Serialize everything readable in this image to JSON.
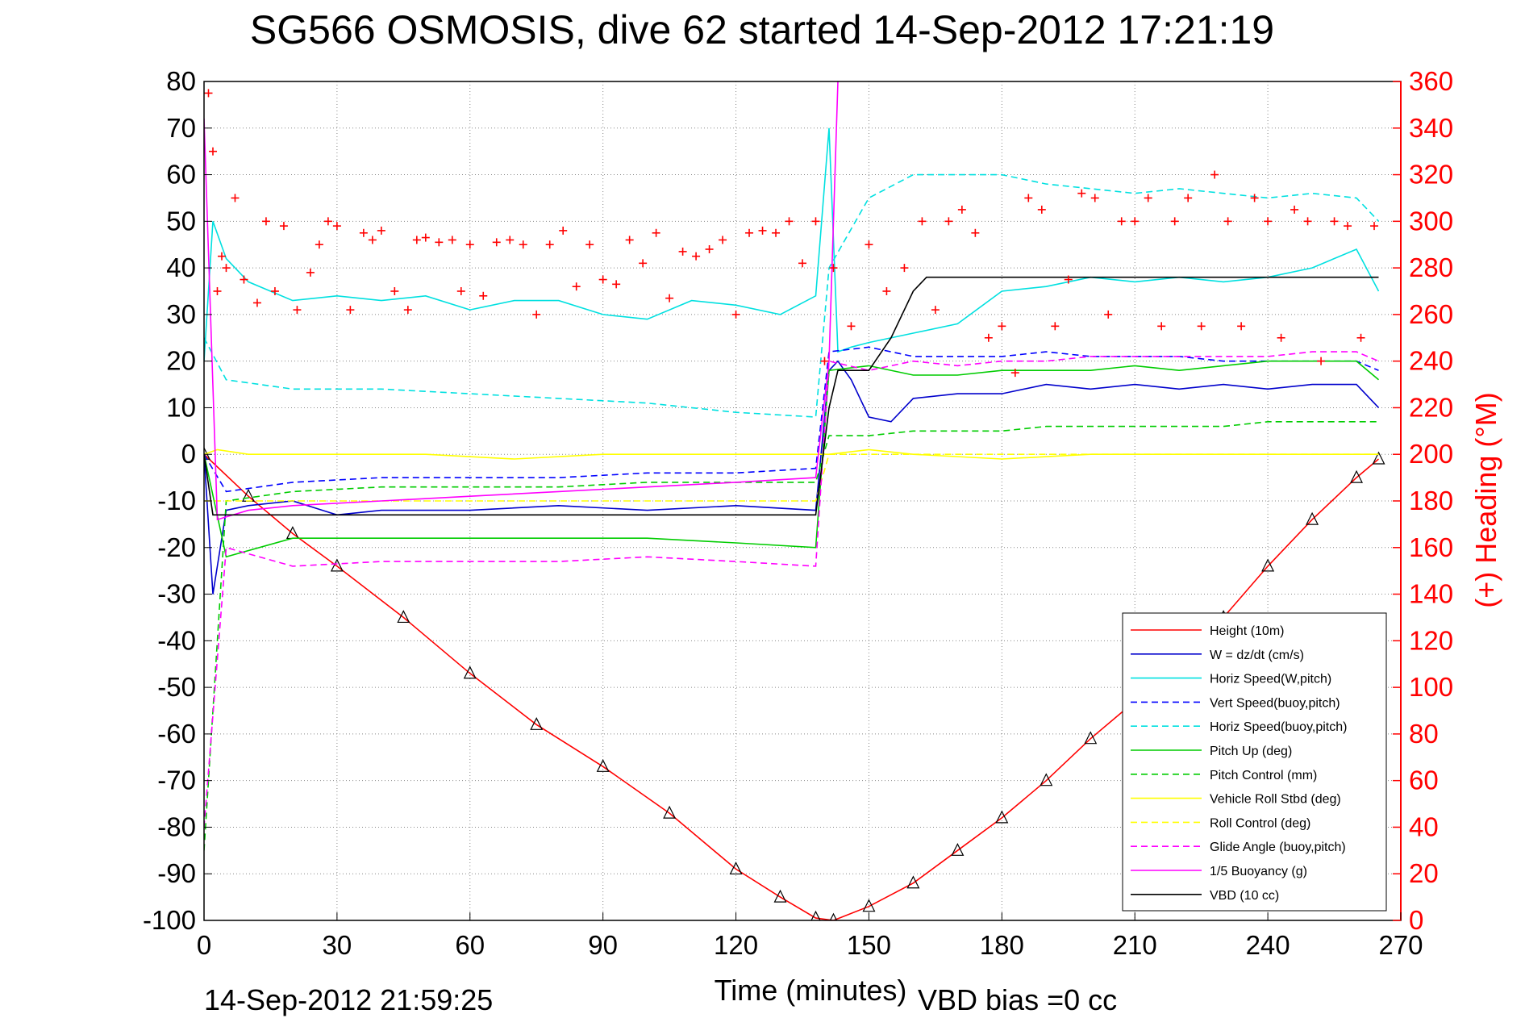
{
  "chart_data": {
    "type": "line",
    "title": "SG566 OSMOSIS, dive 62 started 14-Sep-2012 17:21:19",
    "xlabel": "Time (minutes)",
    "ylabel": "",
    "y2label": "(+) Heading (°M)",
    "xlim": [
      0,
      270
    ],
    "ylim": [
      -100,
      80
    ],
    "y2lim": [
      0,
      360
    ],
    "xticks": [
      "0",
      "30",
      "60",
      "90",
      "120",
      "150",
      "180",
      "210",
      "240",
      "270"
    ],
    "yticks": [
      "80",
      "70",
      "60",
      "50",
      "40",
      "30",
      "20",
      "10",
      "0",
      "-10",
      "-20",
      "-30",
      "-40",
      "-50",
      "-60",
      "-70",
      "-80",
      "-90",
      "-100"
    ],
    "y2ticks": [
      "360",
      "340",
      "320",
      "300",
      "280",
      "260",
      "240",
      "220",
      "200",
      "180",
      "160",
      "140",
      "120",
      "100",
      "80",
      "60",
      "40",
      "20",
      "0"
    ],
    "grid": true,
    "legend_position": "lower-right",
    "footer_left": "14-Sep-2012 21:59:25",
    "footer_right": "VBD bias =0 cc",
    "series": [
      {
        "name": "Height (10m)",
        "color": "#ff0000",
        "style": "solid",
        "x": [
          0,
          10,
          20,
          30,
          45,
          60,
          75,
          90,
          105,
          120,
          130,
          138,
          142,
          150,
          160,
          170,
          180,
          190,
          200,
          210,
          220,
          230,
          240,
          250,
          260,
          265
        ],
        "y": [
          0,
          -9,
          -17,
          -24,
          -35,
          -47,
          -58,
          -67,
          -77,
          -89,
          -95,
          -99.5,
          -100,
          -97,
          -92,
          -85,
          -78,
          -70,
          -61,
          -53,
          -44,
          -35,
          -24,
          -14,
          -5,
          -1
        ]
      },
      {
        "name": "W = dz/dt (cm/s)",
        "color": "#0000cc",
        "style": "solid",
        "x": [
          0,
          2,
          5,
          10,
          20,
          30,
          40,
          60,
          80,
          100,
          120,
          138,
          141,
          143,
          146,
          150,
          155,
          160,
          170,
          180,
          190,
          200,
          210,
          220,
          230,
          240,
          250,
          260,
          265
        ],
        "y": [
          0,
          -30,
          -12,
          -11,
          -10,
          -13,
          -12,
          -12,
          -11,
          -12,
          -11,
          -12,
          18,
          20,
          16,
          8,
          7,
          12,
          13,
          13,
          15,
          14,
          15,
          14,
          15,
          14,
          15,
          15,
          10
        ]
      },
      {
        "name": "Horiz Speed(W,pitch)",
        "color": "#00e0e0",
        "style": "solid",
        "x": [
          0,
          2,
          5,
          10,
          20,
          30,
          40,
          50,
          60,
          70,
          80,
          90,
          100,
          110,
          120,
          130,
          138,
          141,
          143,
          146,
          150,
          160,
          170,
          180,
          190,
          200,
          210,
          220,
          230,
          240,
          250,
          260,
          265
        ],
        "y": [
          20,
          50,
          42,
          37,
          33,
          34,
          33,
          34,
          31,
          33,
          33,
          30,
          29,
          33,
          32,
          30,
          34,
          70,
          22,
          23,
          24,
          26,
          28,
          35,
          36,
          38,
          37,
          38,
          37,
          38,
          40,
          44,
          35
        ]
      },
      {
        "name": "Vert Speed(buoy,pitch)",
        "color": "#0000ff",
        "style": "dashed",
        "x": [
          0,
          5,
          20,
          40,
          60,
          80,
          100,
          120,
          138,
          141,
          150,
          160,
          170,
          180,
          190,
          200,
          210,
          220,
          230,
          240,
          250,
          260,
          265
        ],
        "y": [
          0,
          -8,
          -6,
          -5,
          -5,
          -5,
          -4,
          -4,
          -3,
          22,
          23,
          21,
          21,
          21,
          22,
          21,
          21,
          21,
          20,
          20,
          20,
          20,
          18
        ]
      },
      {
        "name": "Horiz Speed(buoy,pitch)",
        "color": "#00e0e0",
        "style": "dashed",
        "x": [
          0,
          5,
          20,
          40,
          60,
          80,
          100,
          120,
          138,
          141,
          150,
          160,
          170,
          180,
          190,
          200,
          210,
          220,
          230,
          240,
          250,
          260,
          265
        ],
        "y": [
          25,
          16,
          14,
          14,
          13,
          12,
          11,
          9,
          8,
          40,
          55,
          60,
          60,
          60,
          58,
          57,
          56,
          57,
          56,
          55,
          56,
          55,
          50
        ]
      },
      {
        "name": "Pitch Up (deg)",
        "color": "#00cc00",
        "style": "solid",
        "x": [
          0,
          5,
          20,
          40,
          60,
          80,
          100,
          120,
          138,
          141,
          150,
          160,
          170,
          180,
          190,
          200,
          210,
          220,
          230,
          240,
          250,
          260,
          265
        ],
        "y": [
          0,
          -22,
          -18,
          -18,
          -18,
          -18,
          -18,
          -19,
          -20,
          18,
          19,
          17,
          17,
          18,
          18,
          18,
          19,
          18,
          19,
          20,
          20,
          20,
          16
        ]
      },
      {
        "name": "Pitch Control (mm)",
        "color": "#00cc00",
        "style": "dashed",
        "x": [
          0,
          5,
          20,
          40,
          60,
          80,
          100,
          120,
          138,
          141,
          150,
          160,
          170,
          180,
          190,
          200,
          210,
          220,
          230,
          240,
          250,
          260,
          265
        ],
        "y": [
          -85,
          -10,
          -8,
          -7,
          -7,
          -7,
          -6,
          -6,
          -6,
          4,
          4,
          5,
          5,
          5,
          6,
          6,
          6,
          6,
          6,
          7,
          7,
          7,
          7
        ]
      },
      {
        "name": "Vehicle Roll Stbd (deg)",
        "color": "#ffff00",
        "style": "solid",
        "x": [
          0,
          3,
          10,
          30,
          50,
          70,
          90,
          110,
          130,
          138,
          141,
          150,
          160,
          180,
          200,
          220,
          240,
          260,
          265
        ],
        "y": [
          0,
          1,
          0,
          0,
          0,
          -1,
          0,
          0,
          0,
          0,
          0,
          1,
          0,
          -1,
          0,
          0,
          0,
          0,
          0
        ]
      },
      {
        "name": "Roll Control (deg)",
        "color": "#ffff00",
        "style": "dashed",
        "x": [
          0,
          10,
          30,
          50,
          70,
          90,
          110,
          130,
          138,
          141,
          150,
          170,
          190,
          210,
          230,
          250,
          265
        ],
        "y": [
          -10,
          -10,
          -10,
          -10,
          -10,
          -10,
          -10,
          -10,
          -10,
          0,
          0,
          0,
          0,
          0,
          0,
          0,
          0
        ]
      },
      {
        "name": "Glide Angle (buoy,pitch)",
        "color": "#ff00ff",
        "style": "dashed",
        "x": [
          0,
          5,
          20,
          40,
          60,
          80,
          100,
          120,
          138,
          141,
          150,
          160,
          170,
          180,
          190,
          200,
          210,
          220,
          230,
          240,
          250,
          260,
          265
        ],
        "y": [
          -80,
          -20,
          -24,
          -23,
          -23,
          -23,
          -22,
          -23,
          -24,
          20,
          18,
          20,
          19,
          20,
          20,
          21,
          21,
          21,
          21,
          21,
          22,
          22,
          20
        ]
      },
      {
        "name": "1/5 Buoyancy (g)",
        "color": "#ff00ff",
        "style": "solid",
        "x": [
          0,
          3,
          10,
          20,
          40,
          60,
          80,
          100,
          120,
          138,
          141,
          143,
          145,
          146
        ],
        "y": [
          72,
          -14,
          -12,
          -11,
          -10,
          -9,
          -8,
          -7,
          -6,
          -5,
          20,
          80,
          90,
          100
        ]
      },
      {
        "name": "VBD (10 cc)",
        "color": "#000000",
        "style": "solid",
        "x": [
          0,
          2,
          5,
          100,
          138,
          141,
          143,
          150,
          155,
          160,
          163,
          265
        ],
        "y": [
          0,
          -13,
          -13,
          -13,
          -13,
          10,
          18,
          18,
          25,
          35,
          38,
          38
        ]
      }
    ],
    "heading_series": {
      "name": "(+) Heading",
      "color": "#ff0000",
      "marker": "+",
      "axis": "right",
      "x": [
        1,
        2,
        3,
        4,
        5,
        7,
        9,
        12,
        14,
        16,
        18,
        21,
        24,
        26,
        28,
        30,
        33,
        36,
        38,
        40,
        43,
        46,
        48,
        50,
        53,
        56,
        58,
        60,
        63,
        66,
        69,
        72,
        75,
        78,
        81,
        84,
        87,
        90,
        93,
        96,
        99,
        102,
        105,
        108,
        111,
        114,
        117,
        120,
        123,
        126,
        129,
        132,
        135,
        138,
        140,
        142,
        146,
        150,
        154,
        158,
        162,
        165,
        168,
        171,
        174,
        177,
        180,
        183,
        186,
        189,
        192,
        195,
        198,
        201,
        204,
        207,
        210,
        213,
        216,
        219,
        222,
        225,
        228,
        231,
        234,
        237,
        240,
        243,
        246,
        249,
        252,
        255,
        258,
        261,
        264
      ],
      "y": [
        355,
        330,
        270,
        285,
        280,
        310,
        275,
        265,
        300,
        270,
        298,
        262,
        278,
        290,
        300,
        298,
        262,
        295,
        292,
        296,
        270,
        262,
        292,
        293,
        291,
        292,
        270,
        290,
        268,
        291,
        292,
        290,
        260,
        290,
        296,
        272,
        290,
        275,
        273,
        292,
        282,
        295,
        267,
        287,
        285,
        288,
        292,
        260,
        295,
        296,
        295,
        300,
        282,
        300,
        240,
        280,
        255,
        290,
        270,
        280,
        300,
        262,
        300,
        305,
        295,
        250,
        255,
        235,
        310,
        305,
        255,
        275,
        312,
        310,
        260,
        300,
        300,
        310,
        255,
        300,
        310,
        255,
        320,
        300,
        255,
        310,
        300,
        250,
        305,
        300,
        240,
        300,
        298,
        250,
        298
      ]
    }
  }
}
